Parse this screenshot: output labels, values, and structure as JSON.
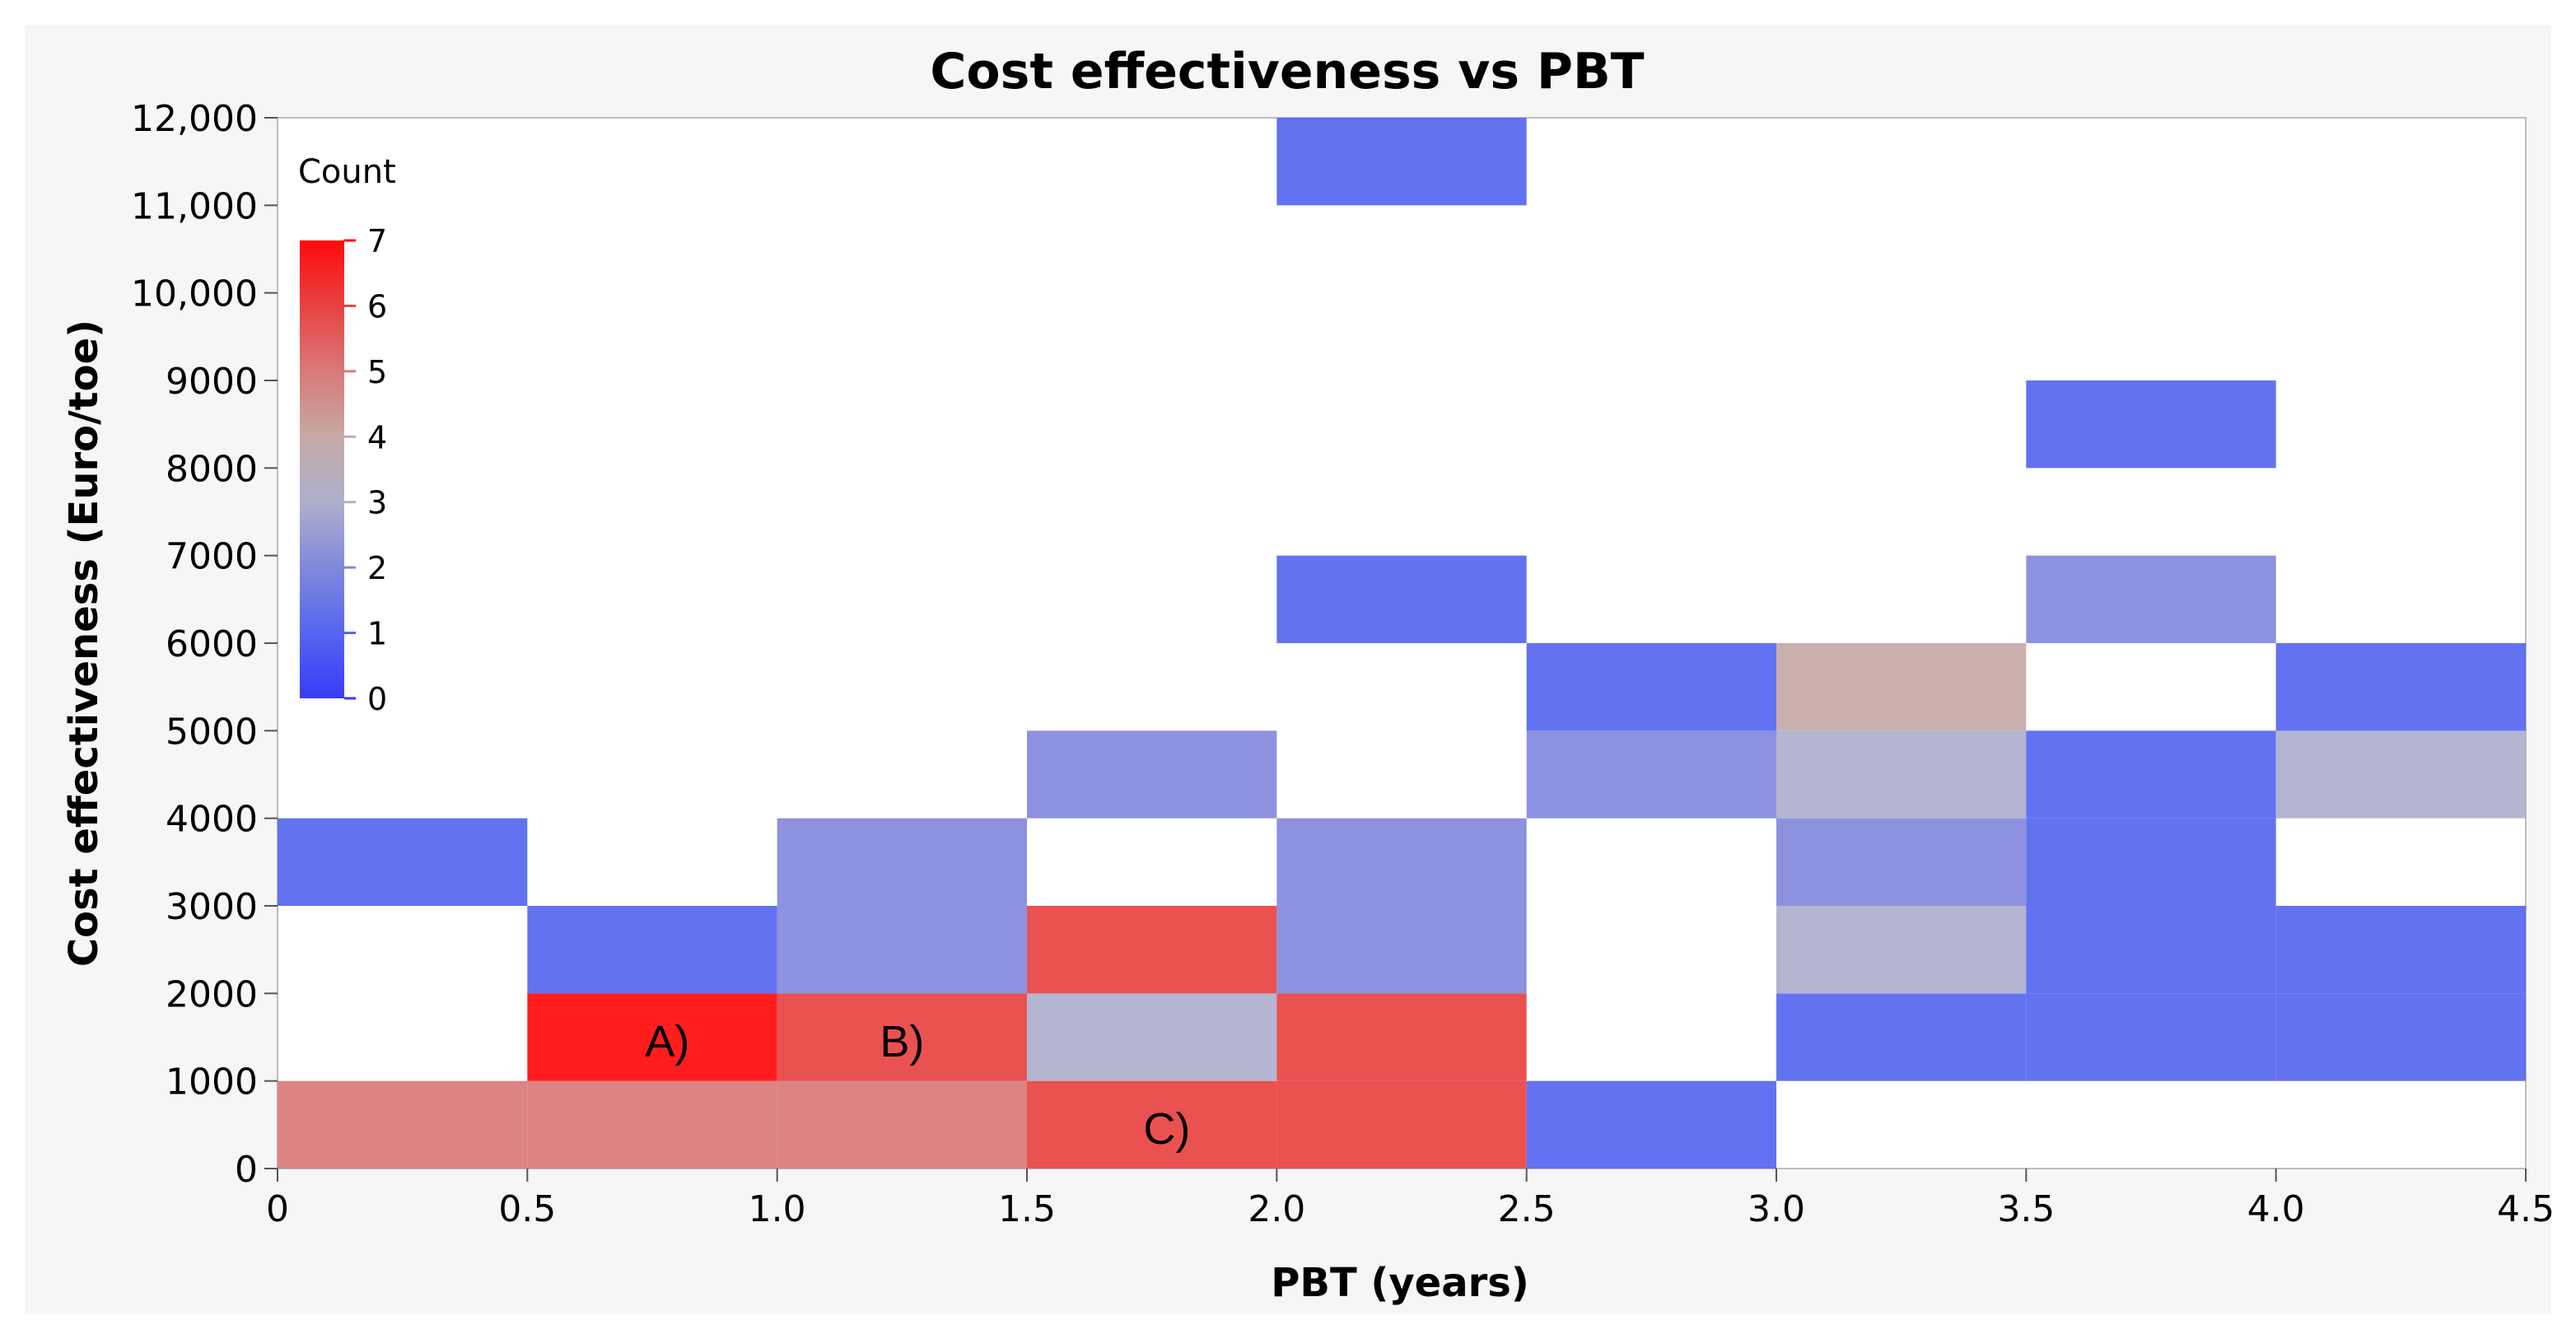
{
  "chart_data": {
    "type": "heatmap",
    "title": "Cost effectiveness vs PBT",
    "xlabel": "PBT (years)",
    "ylabel": "Cost effectiveness (Euro/toe)",
    "xlim": [
      0,
      4.5
    ],
    "ylim": [
      0,
      12000
    ],
    "x_ticks": [
      "0",
      "0.5",
      "1.0",
      "1.5",
      "2.0",
      "2.5",
      "3.0",
      "3.5",
      "4.0",
      "4.5"
    ],
    "x_tick_values": [
      0,
      0.5,
      1.0,
      1.5,
      2.0,
      2.5,
      3.0,
      3.5,
      4.0,
      4.5
    ],
    "y_ticks": [
      "0",
      "1000",
      "2000",
      "3000",
      "4000",
      "5000",
      "6000",
      "7000",
      "8000",
      "9000",
      "10,000",
      "11,000",
      "12,000"
    ],
    "y_tick_values": [
      0,
      1000,
      2000,
      3000,
      4000,
      5000,
      6000,
      7000,
      8000,
      9000,
      10000,
      11000,
      12000
    ],
    "x_bin_width": 0.5,
    "y_bin_height": 1000,
    "legend": {
      "title": "Count",
      "position": "top-left",
      "min": 0,
      "max": 7,
      "ticks": [
        "0",
        "1",
        "2",
        "3",
        "4",
        "5",
        "6",
        "7"
      ]
    },
    "cells": [
      {
        "x": 0.0,
        "y": 0,
        "count": 5
      },
      {
        "x": 0.5,
        "y": 0,
        "count": 5
      },
      {
        "x": 1.0,
        "y": 0,
        "count": 5
      },
      {
        "x": 1.5,
        "y": 0,
        "count": 6
      },
      {
        "x": 2.0,
        "y": 0,
        "count": 6
      },
      {
        "x": 2.5,
        "y": 0,
        "count": 1
      },
      {
        "x": 0.5,
        "y": 1000,
        "count": 7
      },
      {
        "x": 1.0,
        "y": 1000,
        "count": 6
      },
      {
        "x": 1.5,
        "y": 1000,
        "count": 3
      },
      {
        "x": 2.0,
        "y": 1000,
        "count": 6
      },
      {
        "x": 3.0,
        "y": 1000,
        "count": 1
      },
      {
        "x": 3.5,
        "y": 1000,
        "count": 1
      },
      {
        "x": 4.0,
        "y": 1000,
        "count": 1
      },
      {
        "x": 0.5,
        "y": 2000,
        "count": 1
      },
      {
        "x": 1.0,
        "y": 2000,
        "count": 2
      },
      {
        "x": 1.5,
        "y": 2000,
        "count": 6
      },
      {
        "x": 2.0,
        "y": 2000,
        "count": 2
      },
      {
        "x": 3.0,
        "y": 2000,
        "count": 3
      },
      {
        "x": 3.5,
        "y": 2000,
        "count": 1
      },
      {
        "x": 4.0,
        "y": 2000,
        "count": 1
      },
      {
        "x": 0.0,
        "y": 3000,
        "count": 1
      },
      {
        "x": 1.0,
        "y": 3000,
        "count": 2
      },
      {
        "x": 2.0,
        "y": 3000,
        "count": 2
      },
      {
        "x": 3.0,
        "y": 3000,
        "count": 2
      },
      {
        "x": 3.5,
        "y": 3000,
        "count": 1
      },
      {
        "x": 1.5,
        "y": 4000,
        "count": 2
      },
      {
        "x": 2.5,
        "y": 4000,
        "count": 2
      },
      {
        "x": 3.0,
        "y": 4000,
        "count": 3
      },
      {
        "x": 3.5,
        "y": 4000,
        "count": 1
      },
      {
        "x": 4.0,
        "y": 4000,
        "count": 3
      },
      {
        "x": 2.5,
        "y": 5000,
        "count": 1
      },
      {
        "x": 3.0,
        "y": 5000,
        "count": 4
      },
      {
        "x": 4.0,
        "y": 5000,
        "count": 1
      },
      {
        "x": 2.0,
        "y": 6000,
        "count": 1
      },
      {
        "x": 3.5,
        "y": 6000,
        "count": 2
      },
      {
        "x": 3.5,
        "y": 8000,
        "count": 1
      },
      {
        "x": 2.0,
        "y": 11000,
        "count": 1
      }
    ],
    "annotations": [
      {
        "text": "A)",
        "x": 0.78,
        "y": 1450
      },
      {
        "text": "B)",
        "x": 1.25,
        "y": 1450
      },
      {
        "text": "C)",
        "x": 1.78,
        "y": 450
      }
    ]
  },
  "colors": {
    "scale": [
      "#3a3bf6",
      "#5566ef",
      "#8289dc",
      "#adafcd",
      "#c5a9a6",
      "#d97a79",
      "#e84242",
      "#ff0a0a"
    ],
    "grid_border": "#c8c8c8",
    "background": "#ffffff",
    "outer_background": "#f5f5f5"
  }
}
